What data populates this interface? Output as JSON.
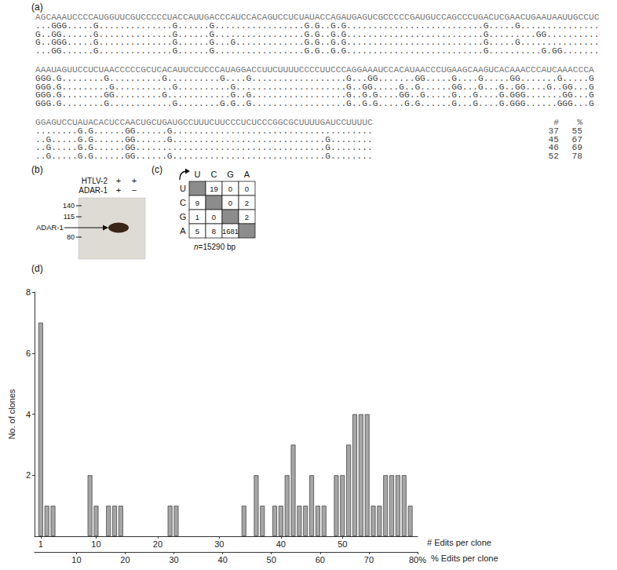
{
  "chart_data": {
    "type": "bar",
    "xlabel": "# Edits per clone",
    "x2label": "% Edits per clone",
    "ylabel": "No. of clones",
    "x": [
      1,
      2,
      3,
      9,
      10,
      12,
      13,
      14,
      22,
      23,
      34,
      36,
      37,
      39,
      40,
      41,
      42,
      43,
      44,
      45,
      46,
      47,
      49,
      50,
      51,
      52,
      53,
      54,
      55,
      56,
      57,
      58,
      59,
      60,
      61
    ],
    "values": [
      7,
      1,
      1,
      2,
      1,
      1,
      1,
      1,
      1,
      1,
      1,
      2,
      1,
      1,
      1,
      2,
      3,
      1,
      1,
      2,
      1,
      1,
      2,
      2,
      3,
      4,
      4,
      4,
      1,
      1,
      2,
      2,
      2,
      2,
      1
    ],
    "color": "#a6a6a6",
    "xlim": [
      0,
      62.2
    ],
    "xticks": [
      1,
      10,
      20,
      30,
      40,
      50
    ],
    "x2lim": [
      1.4,
      80
    ],
    "x2ticks": [
      10,
      20,
      30,
      40,
      50,
      60,
      70,
      {
        "value": 80,
        "label": "80%"
      }
    ],
    "ylim": [
      0,
      8
    ],
    "yticks": [
      2,
      4,
      6,
      8
    ],
    "grid": false
  },
  "figure": {
    "panel_labels": [
      "(a)",
      "(b)",
      "(c)",
      "(d)"
    ],
    "sequences": {
      "blocks": [
        {
          "reference": "AGCAAAUCCCCAUGGUUCGUCCCCCUACCAUUGACCCAUCCACAGUCCUCUAUACCAGAUGAGUCGCCCCCGAUGUCCAGCCCUGACUCGAACUGAAUAAUUGCCUC",
          "clones": [
            "...GGG.....G..............G......G.................G.G..G.G..........................G.....G...............",
            "G..GG......G..............G......G.................G.G..G.G..........................G.........GG..........",
            "G..GGG.....G..............G......G...G.............G.G..G.G..........................G.....G...............",
            "...GG......G..............G......G.................G.G..G.G..........................G..........G.GG......."
          ]
        },
        {
          "reference": "AAAUAGUUCCUCUAACCCCCGCUCACAUUCCUCCCAUAGGACCUUCUUUUCCCCUUCCCAGGAAAUCCACAUAACCCUGAAGCAAGUCACAAACCCAUCAAACCCA",
          "clones": [
            "GGG.G........G..........G..........G....G..................G...GG.......GG.....G....G.....GG.......G.....G",
            "GGG.G.........G...........G..........G.....................G..GG.....G..G......GG...G...G..GG....G..GG...G",
            "GGG.G........GG.........G............G..G..................G..G.G....GG..G.....G...G....G.GGG.......GG...G",
            "GGG.G........G............G........G.G..G..................G..G.G.....G.G......G...G....G.GGG......GGG...G"
          ]
        },
        {
          "reference": "GGAGUCCUAUACACUCCAACUGCUGAUGCCUUUCUUCCCUCUCCCGGCGCUUUUGAUCCUUUUC",
          "clones": [
            "........G.G......GG......G......................................",
            "..G.....G.G......GG......G.............................G........",
            "..G.....G.G......GG....................................G........",
            "..G.....G.G......GG......G.............................G........"
          ]
        }
      ],
      "count_header": "#",
      "percent_header": "%",
      "counts": [
        37,
        45,
        46,
        52
      ],
      "percents": [
        55,
        67,
        69,
        78
      ]
    },
    "blot": {
      "rows": [
        {
          "label": "HTLV-2",
          "lanes": [
            "+",
            "+"
          ]
        },
        {
          "label": "ADAR-1",
          "lanes": [
            "+",
            "−"
          ]
        }
      ],
      "markers": [
        140,
        115,
        80
      ],
      "band_label": "ADAR-1"
    },
    "matrix": {
      "columns": [
        "U",
        "C",
        "G",
        "A"
      ],
      "rows": [
        "U",
        "C",
        "G",
        "A"
      ],
      "cells": [
        [
          null,
          19,
          0,
          0
        ],
        [
          9,
          null,
          0,
          2
        ],
        [
          1,
          0,
          null,
          2
        ],
        [
          5,
          8,
          1681,
          null
        ]
      ],
      "note": "n=15290 bp"
    }
  }
}
